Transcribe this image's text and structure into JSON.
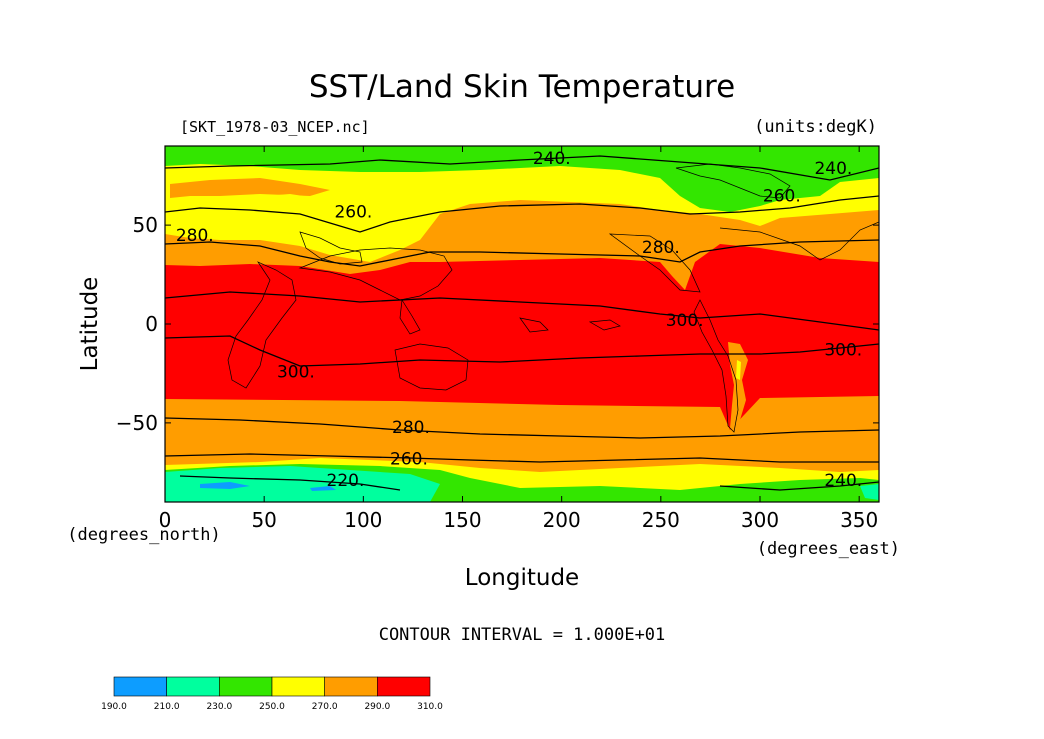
{
  "title": "SST/Land Skin Temperature",
  "subtitle_left": "[SKT_1978-03_NCEP.nc]",
  "subtitle_right": "(units:degK)",
  "x_axis": {
    "label": "Longitude",
    "units": "(degrees_east)",
    "range": [
      0,
      360
    ],
    "ticks": [
      {
        "value": 0,
        "label": "0"
      },
      {
        "value": 50,
        "label": "50"
      },
      {
        "value": 100,
        "label": "100"
      },
      {
        "value": 150,
        "label": "150"
      },
      {
        "value": 200,
        "label": "200"
      },
      {
        "value": 250,
        "label": "250"
      },
      {
        "value": 300,
        "label": "300"
      },
      {
        "value": 350,
        "label": "350"
      }
    ]
  },
  "y_axis": {
    "label": "Latitude",
    "units": "(degrees_north)",
    "range": [
      -90,
      90
    ],
    "ticks": [
      {
        "value": 50,
        "label": "50"
      },
      {
        "value": 0,
        "label": "0"
      },
      {
        "value": -50,
        "label": "−50"
      }
    ]
  },
  "contour_interval_text": "CONTOUR INTERVAL = 1.000E+01",
  "contour_labels": [
    {
      "text": "240.",
      "lon": 195,
      "lat": 84
    },
    {
      "text": "240.",
      "lon": 337,
      "lat": 79
    },
    {
      "text": "260.",
      "lon": 95,
      "lat": 57
    },
    {
      "text": "260.",
      "lon": 311,
      "lat": 65
    },
    {
      "text": "280.",
      "lon": 15,
      "lat": 45
    },
    {
      "text": "280.",
      "lon": 250,
      "lat": 39
    },
    {
      "text": "300.",
      "lon": 66,
      "lat": -24
    },
    {
      "text": "300.",
      "lon": 262,
      "lat": 2
    },
    {
      "text": "300.",
      "lon": 342,
      "lat": -13
    },
    {
      "text": "280.",
      "lon": 124,
      "lat": -52
    },
    {
      "text": "260.",
      "lon": 123,
      "lat": -68
    },
    {
      "text": "220.",
      "lon": 91,
      "lat": -79
    },
    {
      "text": "240.",
      "lon": 342,
      "lat": -79
    }
  ],
  "colorbar": {
    "levels": [
      "190.0",
      "210.0",
      "230.0",
      "250.0",
      "270.0",
      "290.0",
      "310.0"
    ],
    "colors": [
      "#0d9dff",
      "#00ff9e",
      "#33e600",
      "#ffff00",
      "#ff9d00",
      "#ff0000"
    ]
  }
}
